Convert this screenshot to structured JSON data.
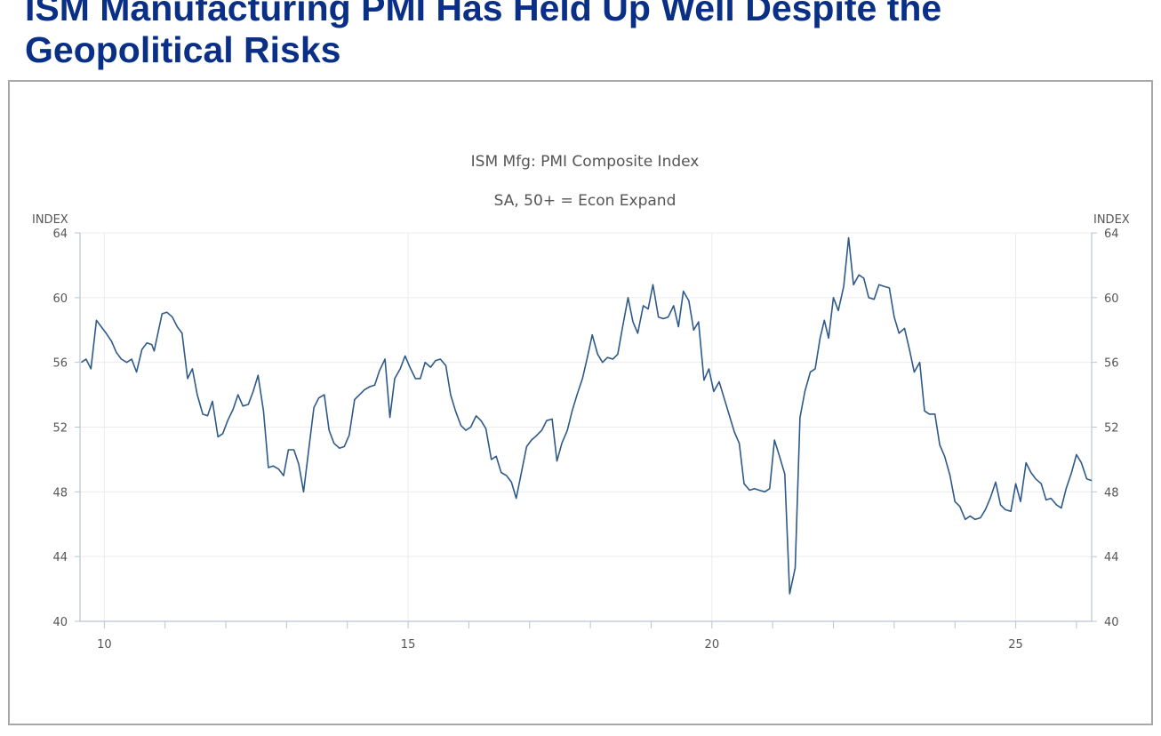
{
  "slide": {
    "title": "ISM Manufacturing PMI Has Held Up Well Despite the\nGeopolitical Risks"
  },
  "colors": {
    "title": "#0a2f86",
    "line": "#2e5a8a",
    "axis": "#b9c4d0",
    "grid": "#ececec",
    "text": "#555555"
  },
  "chart_data": {
    "type": "line",
    "title": "ISM Mfg: PMI Composite Index",
    "subtitle": "SA, 50+ = Econ Expand",
    "ylabel_left": "INDEX",
    "ylabel_right": "INDEX",
    "ylim": [
      40,
      64
    ],
    "yticks": [
      40,
      44,
      48,
      52,
      56,
      60,
      64
    ],
    "xlim": [
      2009.6,
      2026.25
    ],
    "xtick_labels": [
      {
        "x": 2010,
        "label": "10"
      },
      {
        "x": 2015,
        "label": "15"
      },
      {
        "x": 2020,
        "label": "20"
      },
      {
        "x": 2025,
        "label": "25"
      }
    ],
    "x_minor_years": [
      2010,
      2011,
      2012,
      2013,
      2014,
      2015,
      2016,
      2017,
      2018,
      2019,
      2020,
      2021,
      2022,
      2023,
      2024,
      2025,
      2026
    ],
    "series": [
      {
        "values": [
          [
            2009.62,
            56.0
          ],
          [
            2009.7,
            56.2
          ],
          [
            2009.78,
            55.6
          ],
          [
            2009.87,
            58.6
          ],
          [
            2009.95,
            58.2
          ],
          [
            2010.03,
            57.8
          ],
          [
            2010.12,
            57.3
          ],
          [
            2010.2,
            56.6
          ],
          [
            2010.28,
            56.2
          ],
          [
            2010.37,
            56.0
          ],
          [
            2010.45,
            56.2
          ],
          [
            2010.53,
            55.4
          ],
          [
            2010.62,
            56.8
          ],
          [
            2010.7,
            57.2
          ],
          [
            2010.78,
            57.1
          ],
          [
            2010.82,
            56.7
          ],
          [
            2010.95,
            59.0
          ],
          [
            2011.03,
            59.1
          ],
          [
            2011.12,
            58.8
          ],
          [
            2011.2,
            58.2
          ],
          [
            2011.28,
            57.8
          ],
          [
            2011.37,
            55.0
          ],
          [
            2011.45,
            55.6
          ],
          [
            2011.53,
            54.0
          ],
          [
            2011.62,
            52.8
          ],
          [
            2011.7,
            52.7
          ],
          [
            2011.78,
            53.6
          ],
          [
            2011.87,
            51.4
          ],
          [
            2011.95,
            51.6
          ],
          [
            2012.03,
            52.4
          ],
          [
            2012.12,
            53.1
          ],
          [
            2012.2,
            54.0
          ],
          [
            2012.28,
            53.3
          ],
          [
            2012.37,
            53.4
          ],
          [
            2012.45,
            54.2
          ],
          [
            2012.53,
            55.2
          ],
          [
            2012.62,
            53.0
          ],
          [
            2012.7,
            49.5
          ],
          [
            2012.78,
            49.6
          ],
          [
            2012.87,
            49.4
          ],
          [
            2012.95,
            49.0
          ],
          [
            2013.03,
            50.6
          ],
          [
            2013.12,
            50.6
          ],
          [
            2013.2,
            49.7
          ],
          [
            2013.28,
            48.0
          ],
          [
            2013.37,
            50.8
          ],
          [
            2013.45,
            53.2
          ],
          [
            2013.53,
            53.8
          ],
          [
            2013.62,
            54.0
          ],
          [
            2013.7,
            51.8
          ],
          [
            2013.78,
            51.0
          ],
          [
            2013.87,
            50.7
          ],
          [
            2013.95,
            50.8
          ],
          [
            2014.03,
            51.5
          ],
          [
            2014.12,
            53.7
          ],
          [
            2014.2,
            54.0
          ],
          [
            2014.28,
            54.3
          ],
          [
            2014.37,
            54.5
          ],
          [
            2014.45,
            54.6
          ],
          [
            2014.53,
            55.5
          ],
          [
            2014.62,
            56.2
          ],
          [
            2014.7,
            52.6
          ],
          [
            2014.78,
            55.0
          ],
          [
            2014.87,
            55.6
          ],
          [
            2014.95,
            56.4
          ],
          [
            2015.03,
            55.7
          ],
          [
            2015.12,
            55.0
          ],
          [
            2015.2,
            55.0
          ],
          [
            2015.28,
            56.0
          ],
          [
            2015.37,
            55.7
          ],
          [
            2015.45,
            56.1
          ],
          [
            2015.53,
            56.2
          ],
          [
            2015.62,
            55.8
          ],
          [
            2015.7,
            54.0
          ],
          [
            2015.78,
            53.0
          ],
          [
            2015.87,
            52.1
          ],
          [
            2015.95,
            51.8
          ],
          [
            2016.03,
            52.0
          ],
          [
            2016.12,
            52.7
          ],
          [
            2016.2,
            52.4
          ],
          [
            2016.28,
            51.9
          ],
          [
            2016.37,
            50.0
          ],
          [
            2016.45,
            50.2
          ],
          [
            2016.53,
            49.2
          ],
          [
            2016.62,
            49.0
          ],
          [
            2016.7,
            48.6
          ],
          [
            2016.78,
            47.6
          ],
          [
            2016.87,
            49.3
          ],
          [
            2016.95,
            50.8
          ],
          [
            2017.03,
            51.2
          ],
          [
            2017.12,
            51.5
          ],
          [
            2017.2,
            51.8
          ],
          [
            2017.28,
            52.4
          ],
          [
            2017.37,
            52.5
          ],
          [
            2017.45,
            49.9
          ],
          [
            2017.53,
            51.0
          ],
          [
            2017.62,
            51.8
          ],
          [
            2017.7,
            53.0
          ],
          [
            2017.78,
            54.0
          ],
          [
            2017.87,
            55.0
          ],
          [
            2017.95,
            56.3
          ],
          [
            2018.03,
            57.7
          ],
          [
            2018.12,
            56.5
          ],
          [
            2018.2,
            56.0
          ],
          [
            2018.28,
            56.3
          ],
          [
            2018.37,
            56.2
          ],
          [
            2018.45,
            56.5
          ],
          [
            2018.53,
            58.2
          ],
          [
            2018.62,
            60.0
          ],
          [
            2018.7,
            58.5
          ],
          [
            2018.78,
            57.8
          ],
          [
            2018.87,
            59.5
          ],
          [
            2018.95,
            59.3
          ],
          [
            2019.03,
            60.8
          ],
          [
            2019.12,
            58.8
          ],
          [
            2019.2,
            58.7
          ],
          [
            2019.28,
            58.8
          ],
          [
            2019.37,
            59.5
          ],
          [
            2019.45,
            58.2
          ],
          [
            2019.53,
            60.4
          ],
          [
            2019.62,
            59.8
          ],
          [
            2019.7,
            58.0
          ],
          [
            2019.78,
            58.5
          ],
          [
            2019.87,
            54.9
          ],
          [
            2019.95,
            55.6
          ],
          [
            2020.03,
            54.2
          ],
          [
            2020.12,
            54.8
          ],
          [
            2020.2,
            53.8
          ],
          [
            2020.28,
            52.8
          ],
          [
            2020.37,
            51.7
          ],
          [
            2020.45,
            51.0
          ],
          [
            2020.53,
            48.5
          ],
          [
            2020.62,
            48.1
          ],
          [
            2020.7,
            48.2
          ],
          [
            2020.78,
            48.1
          ],
          [
            2020.87,
            48.0
          ],
          [
            2020.95,
            48.2
          ],
          [
            2021.03,
            51.2
          ],
          [
            2021.12,
            50.1
          ],
          [
            2021.2,
            49.1
          ],
          [
            2021.28,
            41.7
          ],
          [
            2021.37,
            43.3
          ],
          [
            2021.45,
            52.6
          ],
          [
            2021.53,
            54.2
          ],
          [
            2021.62,
            55.4
          ],
          [
            2021.7,
            55.6
          ],
          [
            2021.78,
            57.5
          ],
          [
            2021.85,
            58.6
          ],
          [
            2021.92,
            57.5
          ],
          [
            2022.0,
            60.0
          ],
          [
            2022.08,
            59.2
          ],
          [
            2022.17,
            60.7
          ],
          [
            2022.25,
            63.7
          ],
          [
            2022.33,
            60.8
          ],
          [
            2022.42,
            61.4
          ],
          [
            2022.5,
            61.2
          ],
          [
            2022.58,
            60.0
          ],
          [
            2022.67,
            59.9
          ],
          [
            2022.75,
            60.8
          ],
          [
            2022.83,
            60.7
          ],
          [
            2022.92,
            60.6
          ],
          [
            2023.0,
            58.8
          ],
          [
            2023.08,
            57.8
          ],
          [
            2023.17,
            58.1
          ],
          [
            2023.25,
            56.8
          ],
          [
            2023.33,
            55.4
          ],
          [
            2023.42,
            56.0
          ],
          [
            2023.5,
            53.0
          ],
          [
            2023.58,
            52.8
          ],
          [
            2023.67,
            52.8
          ],
          [
            2023.75,
            50.9
          ],
          [
            2023.83,
            50.2
          ],
          [
            2023.92,
            49.0
          ],
          [
            2024.0,
            47.4
          ],
          [
            2024.08,
            47.1
          ],
          [
            2024.17,
            46.3
          ],
          [
            2024.25,
            46.5
          ],
          [
            2024.33,
            46.3
          ],
          [
            2024.42,
            46.4
          ],
          [
            2024.5,
            46.9
          ],
          [
            2024.58,
            47.6
          ],
          [
            2024.67,
            48.6
          ],
          [
            2024.75,
            47.2
          ],
          [
            2024.83,
            46.9
          ],
          [
            2024.92,
            46.8
          ],
          [
            2025.0,
            48.5
          ],
          [
            2025.08,
            47.4
          ],
          [
            2025.17,
            49.8
          ],
          [
            2025.25,
            49.2
          ],
          [
            2025.33,
            48.8
          ],
          [
            2025.42,
            48.5
          ],
          [
            2025.5,
            47.5
          ],
          [
            2025.58,
            47.6
          ],
          [
            2025.67,
            47.2
          ],
          [
            2025.75,
            47.0
          ],
          [
            2025.83,
            48.2
          ],
          [
            2025.92,
            49.2
          ],
          [
            2026.0,
            50.3
          ],
          [
            2026.08,
            49.8
          ],
          [
            2026.17,
            48.8
          ],
          [
            2026.25,
            48.7
          ]
        ]
      }
    ]
  }
}
